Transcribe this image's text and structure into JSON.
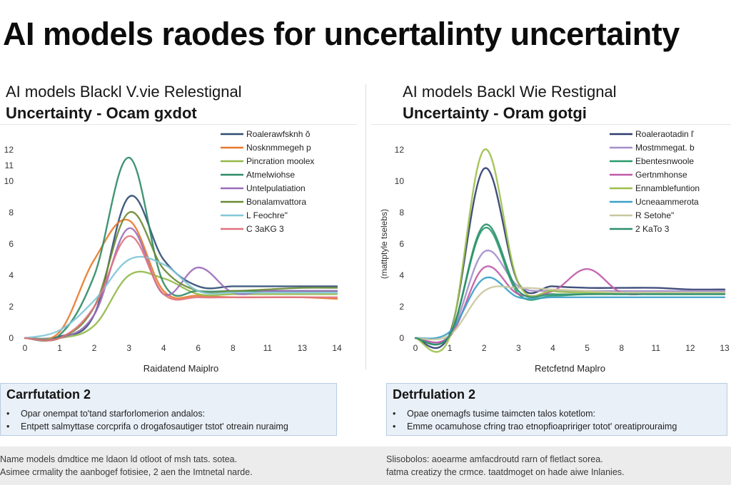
{
  "page": {
    "title": "AI models raodes for uncertalinty uncertainty"
  },
  "panels": [
    {
      "subtitle_line1": "AI models Blackl V.vie  Relestignal",
      "subtitle_line2": "Uncertainty  -  Ocam gxdot",
      "callout_title": "Carrfutation 2",
      "bullets": [
        "Opar onempat to'tand starforlomerion andalos:",
        "Entpett salmyttase corcprifa o drogafosautiger tstot' otreain nuraimg"
      ],
      "footnote": [
        "Name models dmdtice me ldaon ld otloot of msh tats. sotea.",
        "Asimee crmality the aanbogef fotisiee, 2 aen the Imtnetal narde."
      ]
    },
    {
      "subtitle_line1": "AI models Backl Wie  Restignal",
      "subtitle_line2": "Uncertainty  -  Oram gotgi",
      "callout_title": "Detrfulation 2",
      "bullets": [
        "Opae onemagfs tusime taimcten talos kotetlom:",
        "Emme ocamuhose cfring trao etnopfioapririger totot' oreatiprouraimg"
      ],
      "footnote": [
        "Slisobolos: aoearme amfacdroutd rarn of fletlact sorea.",
        "fatma creatizy the crmce. taatdmoget on hade aiwe Inlanies."
      ]
    }
  ],
  "chart_data": [
    {
      "type": "line",
      "title": "AI models Blackl V.vie  Relestignal / Uncertainty  -  Ocam gxdot",
      "xlabel": "Raidatend Maiplro",
      "ylabel": "",
      "x_ticks": [
        0,
        1,
        2,
        3,
        4,
        6,
        8,
        11,
        13,
        14
      ],
      "y_ticks": [
        0,
        2,
        4,
        6,
        8,
        10,
        11,
        12
      ],
      "ylim": [
        0,
        12
      ],
      "grid": false,
      "legend_position": "top-right",
      "series": [
        {
          "name": "Roalerawfsknh ŏ",
          "color": "#2e4d73",
          "values": [
            0,
            0.1,
            1.5,
            9,
            5,
            3.3,
            3.3,
            3.3,
            3.3,
            3.3
          ]
        },
        {
          "name": "Nosknmmegeh p",
          "color": "#e87a2c",
          "values": [
            0,
            0.4,
            5,
            7.5,
            3,
            2.7,
            2.6,
            2.6,
            2.6,
            2.5
          ]
        },
        {
          "name": "Pincration moolex",
          "color": "#94b84a",
          "values": [
            0,
            0,
            0.8,
            4,
            3.8,
            2.8,
            2.8,
            2.8,
            2.8,
            2.8
          ]
        },
        {
          "name": "Atmelwiohse",
          "color": "#2c8a64",
          "values": [
            0,
            0.2,
            4,
            11.5,
            3.5,
            3,
            3,
            3,
            3,
            3
          ]
        },
        {
          "name": "Untelpulatiation",
          "color": "#9b6bb9",
          "values": [
            0,
            0,
            1.5,
            7,
            2.8,
            4.5,
            2.9,
            3,
            3,
            3
          ]
        },
        {
          "name": "Bonalamvattora",
          "color": "#6b8a34",
          "values": [
            0,
            0,
            2,
            8,
            4.4,
            3,
            3,
            3.1,
            3.2,
            3.2
          ]
        },
        {
          "name": "L Feochre\"",
          "color": "#82c7d8",
          "values": [
            0,
            0.5,
            2.4,
            5,
            4.7,
            3,
            2.9,
            2.9,
            2.9,
            2.9
          ]
        },
        {
          "name": "C 3aKG 3",
          "color": "#e0727d",
          "values": [
            0,
            0,
            2,
            6.5,
            2.8,
            2.6,
            2.6,
            2.6,
            2.6,
            2.6
          ]
        }
      ]
    },
    {
      "type": "line",
      "title": "AI models Backl Wie  Restignal / Uncertainty  -  Oram gotgi",
      "xlabel": "Retcfetnd Maplro",
      "ylabel": "(mattptyle tselebs)",
      "x_ticks": [
        0,
        1,
        2,
        3,
        4,
        5,
        8,
        11,
        12,
        13
      ],
      "y_ticks": [
        0,
        2,
        4,
        6,
        8,
        10,
        12
      ],
      "ylim": [
        0,
        12
      ],
      "grid": false,
      "legend_position": "top-right",
      "series": [
        {
          "name": "Roaleraotadin ľ",
          "color": "#2e3c6e",
          "values": [
            0,
            0.3,
            10.8,
            3.5,
            3.3,
            3.2,
            3.2,
            3.2,
            3.1,
            3.1
          ]
        },
        {
          "name": "Mostmmegat. b",
          "color": "#a48fc9",
          "values": [
            0,
            0.2,
            5.5,
            3.3,
            3,
            3,
            3,
            3,
            3,
            3
          ]
        },
        {
          "name": "Ebentesnwoole",
          "color": "#2a9a6d",
          "values": [
            0,
            0.2,
            7,
            2.8,
            2.7,
            2.8,
            2.8,
            2.8,
            2.8,
            2.8
          ]
        },
        {
          "name": "Gertnmhonse",
          "color": "#c05aa8",
          "values": [
            0,
            0.1,
            4.5,
            2.8,
            3,
            4.4,
            2.9,
            2.9,
            2.9,
            2.9
          ]
        },
        {
          "name": "Ennamblefuntion",
          "color": "#9cc04a",
          "values": [
            0,
            0.1,
            12,
            3.5,
            3,
            2.9,
            2.9,
            2.9,
            2.9,
            2.9
          ]
        },
        {
          "name": "Ucneaammerota",
          "color": "#3aa0c8",
          "values": [
            0,
            0.4,
            3.8,
            2.6,
            2.6,
            2.6,
            2.6,
            2.6,
            2.6,
            2.6
          ]
        },
        {
          "name": "R Setohe\"",
          "color": "#c9c89e",
          "values": [
            0,
            0.2,
            3,
            3.2,
            3.1,
            3,
            2.9,
            2.9,
            2.9,
            2.9
          ]
        },
        {
          "name": "2 KaTo 3",
          "color": "#2c8f6a",
          "values": [
            0,
            0.2,
            7.2,
            3,
            2.8,
            2.8,
            2.8,
            2.8,
            2.8,
            2.8
          ]
        }
      ]
    }
  ]
}
